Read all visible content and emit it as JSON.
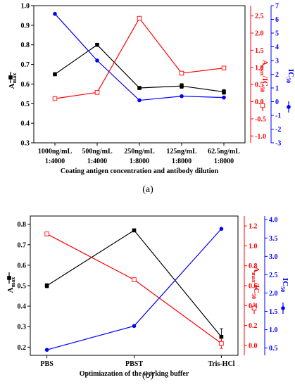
{
  "chart_data": [
    {
      "panel_label": "(a)",
      "type": "line",
      "categories": [
        [
          "1000ng/mL",
          "1:4000"
        ],
        [
          "500ng/mL",
          "1:4000"
        ],
        [
          "250ng/mL",
          "1:8000"
        ],
        [
          "125ng/mL",
          "1:8000"
        ],
        [
          "62.5ng/mL",
          "1:8000"
        ]
      ],
      "xlabel": "Coating antigen concentration and antibody dilution",
      "axes": [
        {
          "label": "A",
          "label_sub": "max",
          "ylim": [
            0.3,
            1.0
          ],
          "ticks": [
            0.3,
            0.4,
            0.5,
            0.6,
            0.7,
            0.8,
            0.9,
            1.0
          ],
          "color": "#000000"
        },
        {
          "label": "A",
          "label_sub": "max",
          "label_mid": "/IC",
          "label_sub2": "50",
          "ylim": [
            -1.2,
            2.8
          ],
          "ticks": [
            -1.0,
            -0.5,
            0.0,
            0.5,
            1.0,
            1.5,
            2.0,
            2.5
          ],
          "color": "#ff0000"
        },
        {
          "label": "IC",
          "label_sub": "50",
          "ylim": [
            -3,
            7
          ],
          "ticks": [
            -3,
            -2,
            -1,
            0,
            1,
            2,
            3,
            4,
            5,
            6,
            7
          ],
          "color": "#0000ff"
        }
      ],
      "series": [
        {
          "axis": 0,
          "marker": "square-filled",
          "color": "#000000",
          "values": [
            0.65,
            0.8,
            0.58,
            0.59,
            0.56
          ],
          "errors": [
            0,
            0,
            0,
            0.012,
            0.012
          ]
        },
        {
          "axis": 1,
          "marker": "square-open",
          "color": "#ff0000",
          "values": [
            0.09,
            0.27,
            2.43,
            0.83,
            0.98
          ],
          "errors": [
            0,
            0,
            0,
            0,
            0
          ]
        },
        {
          "axis": 2,
          "marker": "circle-filled",
          "color": "#0000ff",
          "values": [
            6.4,
            3.0,
            0.1,
            0.4,
            0.3
          ],
          "errors": [
            0,
            0,
            0,
            0,
            0
          ]
        }
      ]
    },
    {
      "panel_label": "(b)",
      "type": "line",
      "categories": [
        [
          "PBS"
        ],
        [
          "PBST"
        ],
        [
          "Tris-HCl"
        ]
      ],
      "xlabel": "Optimiazation of the working buffer",
      "axes": [
        {
          "label": "A",
          "label_sub": "max",
          "ylim": [
            0.16,
            0.84
          ],
          "ticks": [
            0.2,
            0.3,
            0.4,
            0.5,
            0.6,
            0.7,
            0.8
          ],
          "color": "#000000"
        },
        {
          "label": "A",
          "label_sub": "max",
          "label_mid": "/IC",
          "label_sub2": "50",
          "ylim": [
            -0.1,
            1.3
          ],
          "ticks": [
            0.0,
            0.2,
            0.4,
            0.6,
            0.8,
            1.0,
            1.2
          ],
          "color": "#ff0000"
        },
        {
          "label": "IC",
          "label_sub": "50",
          "ylim": [
            0.3,
            4.1
          ],
          "ticks": [
            0.5,
            1.0,
            1.5,
            2.0,
            2.5,
            3.0,
            3.5,
            4.0
          ],
          "color": "#0000ff"
        }
      ],
      "series": [
        {
          "axis": 0,
          "marker": "square-filled",
          "color": "#000000",
          "values": [
            0.5,
            0.77,
            0.25
          ],
          "errors": [
            0.01,
            0,
            0.04
          ]
        },
        {
          "axis": 1,
          "marker": "square-open",
          "color": "#ff0000",
          "values": [
            1.12,
            0.66,
            0.02
          ],
          "errors": [
            0,
            0,
            0.05
          ]
        },
        {
          "axis": 2,
          "marker": "circle-filled",
          "color": "#0000ff",
          "values": [
            0.45,
            1.1,
            3.75
          ],
          "errors": [
            0,
            0,
            0
          ]
        }
      ]
    }
  ]
}
